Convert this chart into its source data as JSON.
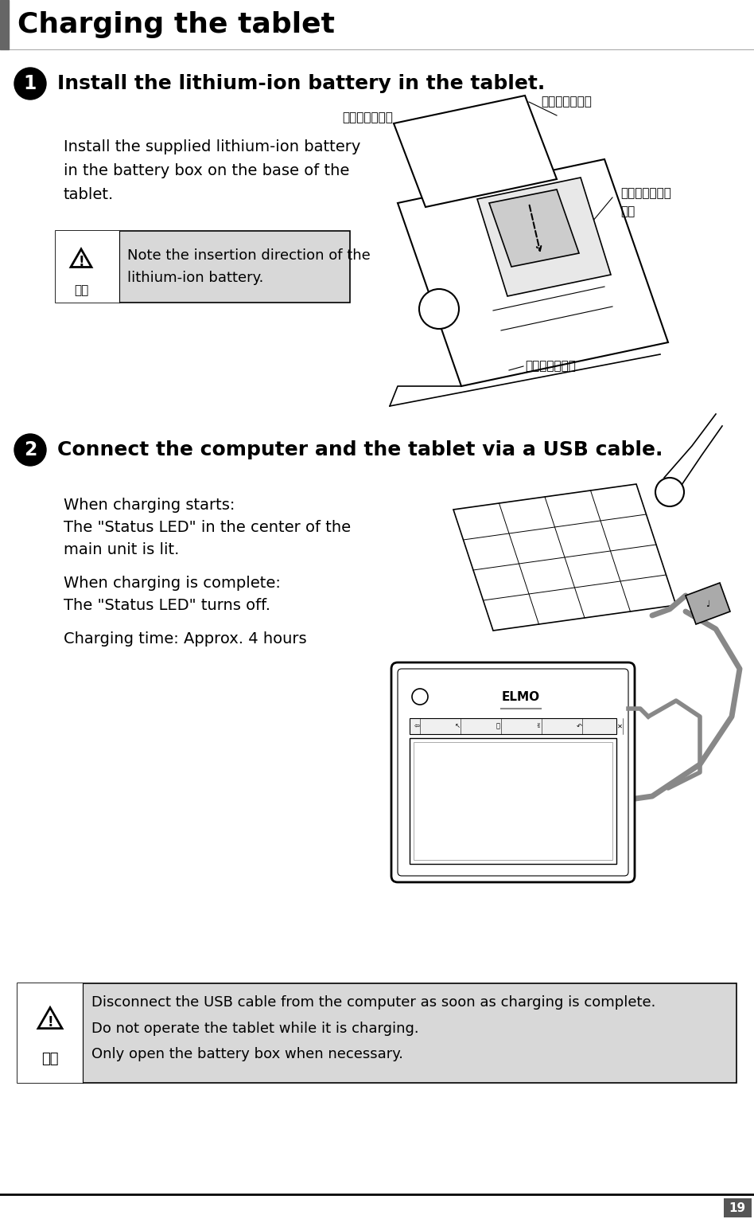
{
  "title": "Charging the tablet",
  "page_number": "19",
  "background_color": "#ffffff",
  "header_bar_color": "#666666",
  "step1_heading": "Install the lithium-ion battery in the tablet.",
  "step1_body_line1": "Install the supplied lithium-ion battery",
  "step1_body_line2": "in the battery box on the base of the",
  "step1_body_line3": "tablet.",
  "step1_note_kanji": "注意",
  "step1_note_text1": "Note the insertion direction of the",
  "step1_note_text2": "lithium-ion battery.",
  "step1_jp_label1": "電池ボックス蓋",
  "step1_jp_label2": "プリント面を上",
  "step1_jp_label3a": "リチウムイオン",
  "step1_jp_label3b": "電池",
  "step1_jp_label4": "タブレット底面",
  "step2_heading": "Connect the computer and the tablet via a USB cable.",
  "step2_line1": "When charging starts:",
  "step2_line2": "The \"Status LED\" in the center of the",
  "step2_line3": "main unit is lit.",
  "step2_line4": "When charging is complete:",
  "step2_line5": "The \"Status LED\" turns off.",
  "step2_line6": "Charging time: Approx. 4 hours",
  "bottom_note_kanji": "注意",
  "bottom_note_line1": "Disconnect the USB cable from the computer as soon as charging is complete.",
  "bottom_note_line2": "Do not operate the tablet while it is charging.",
  "bottom_note_line3": "Only open the battery box when necessary.",
  "note_bg_color": "#d8d8d8",
  "elmo_text": "ELMO"
}
